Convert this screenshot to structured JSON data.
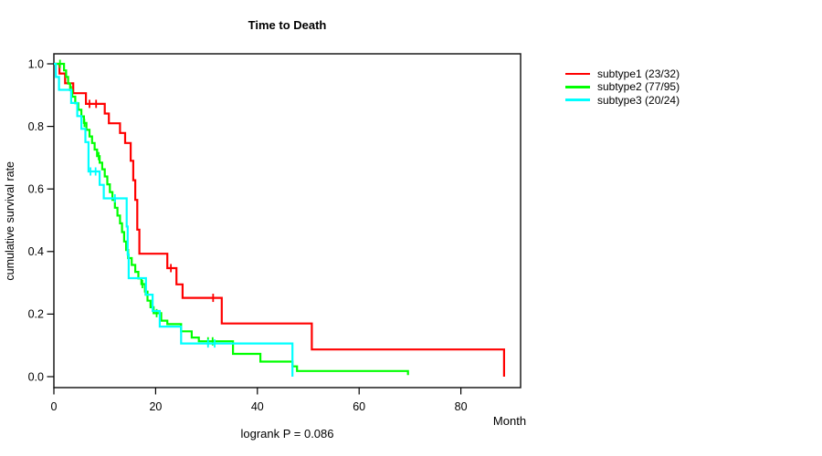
{
  "title": "Time to Death",
  "y_axis_label": "cumulative survival rate",
  "x_axis_label": "Month",
  "footnote": "logrank P = 0.086",
  "legend": {
    "position": "right",
    "items": [
      {
        "label": "subtype1 (23/32)",
        "color": "#ff0000"
      },
      {
        "label": "subtype2 (77/95)",
        "color": "#00ff00"
      },
      {
        "label": "subtype3 (20/24)",
        "color": "#00ffff"
      }
    ]
  },
  "chart_data": {
    "type": "line",
    "subtype": "kaplan-meier-step",
    "title": "Time to Death",
    "xlabel": "Month",
    "ylabel": "cumulative survival rate",
    "annotation": "logrank P = 0.086",
    "grid": false,
    "legend_position": "right-outside",
    "xlim": [
      0,
      91
    ],
    "ylim": [
      0.0,
      1.0
    ],
    "x_ticks": {
      "values": [
        0,
        20,
        40,
        60,
        80
      ],
      "labels": [
        "0",
        "20",
        "40",
        "60",
        "80"
      ]
    },
    "y_ticks": {
      "values": [
        0.0,
        0.2,
        0.4,
        0.6,
        0.8,
        1.0
      ],
      "labels": [
        "0.0",
        "0.2",
        "0.4",
        "0.6",
        "0.8",
        "1.0"
      ]
    },
    "series": [
      {
        "name": "subtype1 (23/32)",
        "events": 23,
        "n": 32,
        "color": "#ff0000",
        "points": [
          [
            0,
            1.0
          ],
          [
            1.1,
            0.969
          ],
          [
            2.2,
            0.938
          ],
          [
            3.8,
            0.906
          ],
          [
            6.3,
            0.872
          ],
          [
            10.0,
            0.841
          ],
          [
            10.8,
            0.81
          ],
          [
            13.0,
            0.779
          ],
          [
            14.0,
            0.747
          ],
          [
            15.1,
            0.69
          ],
          [
            15.6,
            0.628
          ],
          [
            16.0,
            0.565
          ],
          [
            16.4,
            0.47
          ],
          [
            16.8,
            0.393
          ],
          [
            22.3,
            0.347
          ],
          [
            24.1,
            0.295
          ],
          [
            25.3,
            0.252
          ],
          [
            33.0,
            0.17
          ],
          [
            50.7,
            0.087
          ],
          [
            88.5,
            0.0
          ]
        ],
        "censor_months": [
          7.0,
          8.3,
          23.0,
          31.3
        ]
      },
      {
        "name": "subtype2 (77/95)",
        "events": 77,
        "n": 95,
        "color": "#00ff00",
        "points": [
          [
            0,
            1.0
          ],
          [
            2.0,
            0.979
          ],
          [
            2.4,
            0.958
          ],
          [
            2.8,
            0.937
          ],
          [
            3.2,
            0.916
          ],
          [
            3.6,
            0.895
          ],
          [
            4.2,
            0.874
          ],
          [
            4.8,
            0.853
          ],
          [
            5.4,
            0.832
          ],
          [
            5.9,
            0.811
          ],
          [
            6.4,
            0.789
          ],
          [
            7.0,
            0.768
          ],
          [
            7.5,
            0.747
          ],
          [
            8.0,
            0.726
          ],
          [
            8.5,
            0.705
          ],
          [
            9.0,
            0.684
          ],
          [
            9.5,
            0.663
          ],
          [
            10.0,
            0.64
          ],
          [
            10.5,
            0.615
          ],
          [
            11.0,
            0.59
          ],
          [
            11.5,
            0.565
          ],
          [
            12.0,
            0.54
          ],
          [
            12.5,
            0.515
          ],
          [
            13.0,
            0.49
          ],
          [
            13.4,
            0.462
          ],
          [
            13.8,
            0.432
          ],
          [
            14.2,
            0.405
          ],
          [
            14.6,
            0.379
          ],
          [
            15.3,
            0.357
          ],
          [
            16.0,
            0.335
          ],
          [
            16.6,
            0.314
          ],
          [
            17.2,
            0.296
          ],
          [
            17.9,
            0.272
          ],
          [
            18.4,
            0.243
          ],
          [
            19.0,
            0.222
          ],
          [
            19.6,
            0.203
          ],
          [
            21.1,
            0.179
          ],
          [
            22.3,
            0.168
          ],
          [
            25.0,
            0.145
          ],
          [
            27.1,
            0.125
          ],
          [
            28.5,
            0.113
          ],
          [
            35.2,
            0.073
          ],
          [
            40.6,
            0.048
          ],
          [
            46.9,
            0.033
          ],
          [
            47.8,
            0.018
          ],
          [
            69.6,
            0.005
          ]
        ],
        "censor_months": [
          1.2,
          3.4,
          6.0,
          8.8,
          17.4,
          18.0,
          20.2,
          30.3,
          31.2
        ]
      },
      {
        "name": "subtype3 (20/24)",
        "events": 20,
        "n": 24,
        "color": "#00ffff",
        "points": [
          [
            0,
            1.0
          ],
          [
            0.4,
            0.958
          ],
          [
            1.0,
            0.917
          ],
          [
            3.4,
            0.875
          ],
          [
            4.6,
            0.833
          ],
          [
            5.4,
            0.792
          ],
          [
            6.2,
            0.75
          ],
          [
            6.8,
            0.656
          ],
          [
            9.0,
            0.613
          ],
          [
            9.8,
            0.57
          ],
          [
            14.3,
            0.48
          ],
          [
            14.5,
            0.39
          ],
          [
            14.7,
            0.315
          ],
          [
            18.1,
            0.262
          ],
          [
            19.4,
            0.21
          ],
          [
            20.8,
            0.16
          ],
          [
            25.0,
            0.106
          ],
          [
            46.9,
            0.0
          ]
        ],
        "censor_months": [
          7.2,
          8.2,
          12.0,
          30.3,
          31.6
        ]
      }
    ]
  }
}
